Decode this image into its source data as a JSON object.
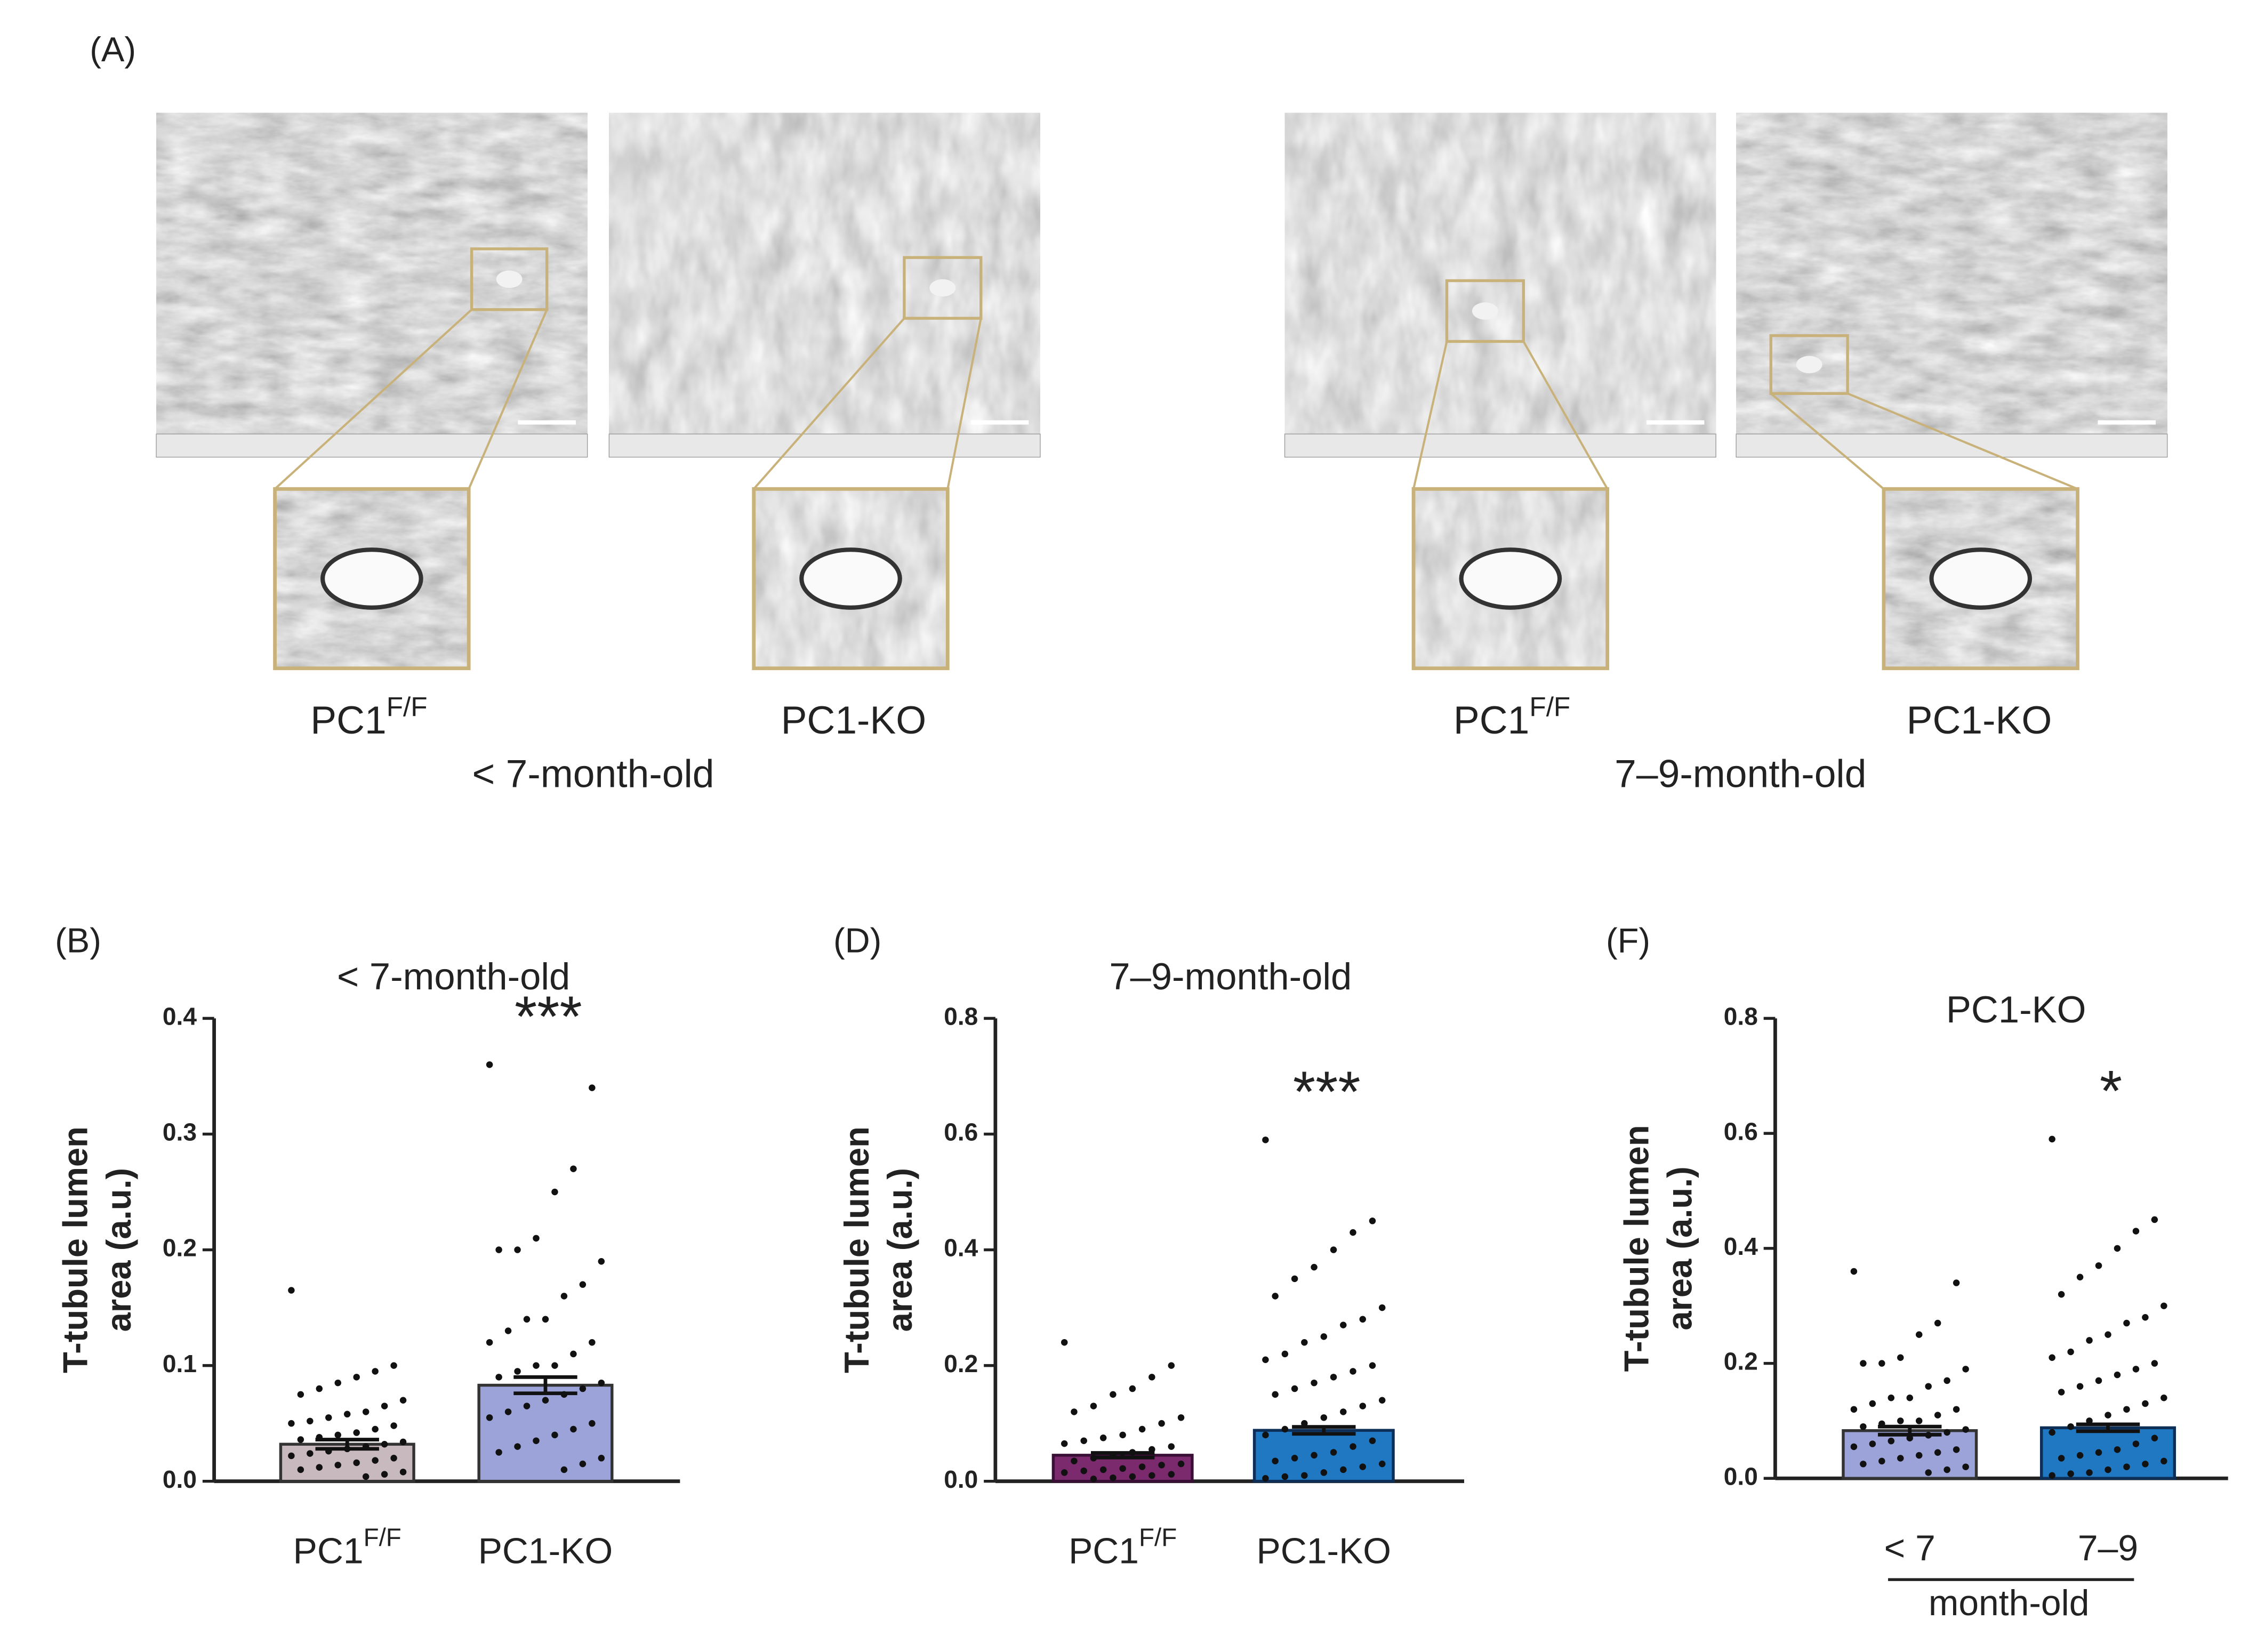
{
  "panel_a": {
    "label": "(A)",
    "groups": [
      {
        "age": "< 7-month-old",
        "samples": [
          {
            "base": "PC1",
            "sup": "F/F"
          },
          {
            "base": "PC1-KO"
          }
        ]
      },
      {
        "age": "7–9-month-old",
        "samples": [
          {
            "base": "PC1",
            "sup": "F/F"
          },
          {
            "base": "PC1-KO"
          }
        ]
      }
    ]
  },
  "chart_data": [
    {
      "type": "bar",
      "panel": "(B)",
      "title": "< 7-month-old",
      "title_color": "#6b6e86",
      "ylabel": [
        "T-tubule lumen",
        "area (a.u.)"
      ],
      "categories": [
        {
          "base": "PC1",
          "sup": "F/F"
        },
        {
          "base": "PC1-KO"
        }
      ],
      "values": [
        0.032,
        0.083
      ],
      "errors": [
        0.004,
        0.007
      ],
      "colors": [
        "#c8b9bf",
        "#9ba3d8"
      ],
      "edge_colors": [
        "#333333",
        "#333333"
      ],
      "points": [
        [
          0.165,
          0.1,
          0.095,
          0.09,
          0.085,
          0.08,
          0.075,
          0.07,
          0.065,
          0.06,
          0.058,
          0.055,
          0.052,
          0.05,
          0.048,
          0.045,
          0.042,
          0.04,
          0.038,
          0.036,
          0.034,
          0.032,
          0.03,
          0.028,
          0.026,
          0.024,
          0.022,
          0.02,
          0.018,
          0.016,
          0.014,
          0.012,
          0.01,
          0.008,
          0.006,
          0.004
        ],
        [
          0.36,
          0.34,
          0.27,
          0.25,
          0.21,
          0.2,
          0.2,
          0.19,
          0.17,
          0.16,
          0.14,
          0.14,
          0.13,
          0.12,
          0.12,
          0.11,
          0.1,
          0.1,
          0.095,
          0.09,
          0.085,
          0.08,
          0.075,
          0.07,
          0.065,
          0.06,
          0.055,
          0.05,
          0.045,
          0.04,
          0.035,
          0.03,
          0.025,
          0.02,
          0.015,
          0.01
        ]
      ],
      "annotation": "***",
      "annotation_index": 1,
      "ylim": [
        0,
        0.4
      ],
      "yticks": [
        {
          "value": 0,
          "label": "0.0"
        },
        0.1,
        0.2,
        0.3,
        0.4
      ]
    },
    {
      "type": "bar",
      "panel": "(D)",
      "title": "7–9-month-old",
      "title_color": "#222222",
      "ylabel": [
        "T-tubule lumen",
        "area (a.u.)"
      ],
      "categories": [
        {
          "base": "PC1",
          "sup": "F/F"
        },
        {
          "base": "PC1-KO"
        }
      ],
      "values": [
        0.045,
        0.088
      ],
      "errors": [
        0.004,
        0.006
      ],
      "colors": [
        "#7b2a6e",
        "#1f78c1"
      ],
      "edge_colors": [
        "#3a0f35",
        "#0d2e57"
      ],
      "points": [
        [
          0.24,
          0.2,
          0.18,
          0.16,
          0.15,
          0.13,
          0.12,
          0.11,
          0.1,
          0.09,
          0.08,
          0.075,
          0.07,
          0.065,
          0.06,
          0.055,
          0.05,
          0.045,
          0.04,
          0.035,
          0.03,
          0.028,
          0.025,
          0.022,
          0.02,
          0.018,
          0.015,
          0.012,
          0.01,
          0.008,
          0.006,
          0.004
        ],
        [
          0.59,
          0.45,
          0.43,
          0.4,
          0.37,
          0.35,
          0.32,
          0.3,
          0.28,
          0.27,
          0.25,
          0.24,
          0.22,
          0.21,
          0.2,
          0.19,
          0.18,
          0.17,
          0.16,
          0.15,
          0.14,
          0.13,
          0.12,
          0.11,
          0.1,
          0.09,
          0.08,
          0.07,
          0.06,
          0.05,
          0.045,
          0.04,
          0.035,
          0.03,
          0.025,
          0.02,
          0.015,
          0.01,
          0.008,
          0.005
        ]
      ],
      "annotation": "***",
      "annotation_index": 1,
      "ylim": [
        0,
        0.8
      ],
      "yticks": [
        {
          "value": 0,
          "label": "0.0"
        },
        0.2,
        0.4,
        0.6,
        0.8
      ]
    },
    {
      "type": "bar",
      "panel": "(F)",
      "title": "PC1-KO",
      "title_color": "#222222",
      "ylabel": [
        "T-tubule lumen",
        "area (a.u.)"
      ],
      "categories": [
        {
          "base": "< 7"
        },
        {
          "base": "7–9"
        }
      ],
      "xlabel": "month-old",
      "values": [
        0.083,
        0.088
      ],
      "errors": [
        0.007,
        0.006
      ],
      "colors": [
        "#9ba3d8",
        "#1f78c1"
      ],
      "edge_colors": [
        "#333333",
        "#0d2e57"
      ],
      "points": [
        [
          0.36,
          0.34,
          0.27,
          0.25,
          0.21,
          0.2,
          0.2,
          0.19,
          0.17,
          0.16,
          0.14,
          0.14,
          0.13,
          0.12,
          0.12,
          0.11,
          0.1,
          0.1,
          0.095,
          0.09,
          0.085,
          0.08,
          0.075,
          0.07,
          0.065,
          0.06,
          0.055,
          0.05,
          0.045,
          0.04,
          0.035,
          0.03,
          0.025,
          0.02,
          0.015,
          0.01
        ],
        [
          0.59,
          0.45,
          0.43,
          0.4,
          0.37,
          0.35,
          0.32,
          0.3,
          0.28,
          0.27,
          0.25,
          0.24,
          0.22,
          0.21,
          0.2,
          0.19,
          0.18,
          0.17,
          0.16,
          0.15,
          0.14,
          0.13,
          0.12,
          0.11,
          0.1,
          0.09,
          0.08,
          0.07,
          0.06,
          0.05,
          0.045,
          0.04,
          0.035,
          0.03,
          0.025,
          0.02,
          0.015,
          0.01,
          0.008,
          0.005
        ]
      ],
      "annotation": "*",
      "annotation_index": 1,
      "ylim": [
        0,
        0.8
      ],
      "yticks": [
        {
          "value": 0,
          "label": "0.0"
        },
        0.2,
        0.4,
        0.6,
        0.8
      ]
    }
  ]
}
